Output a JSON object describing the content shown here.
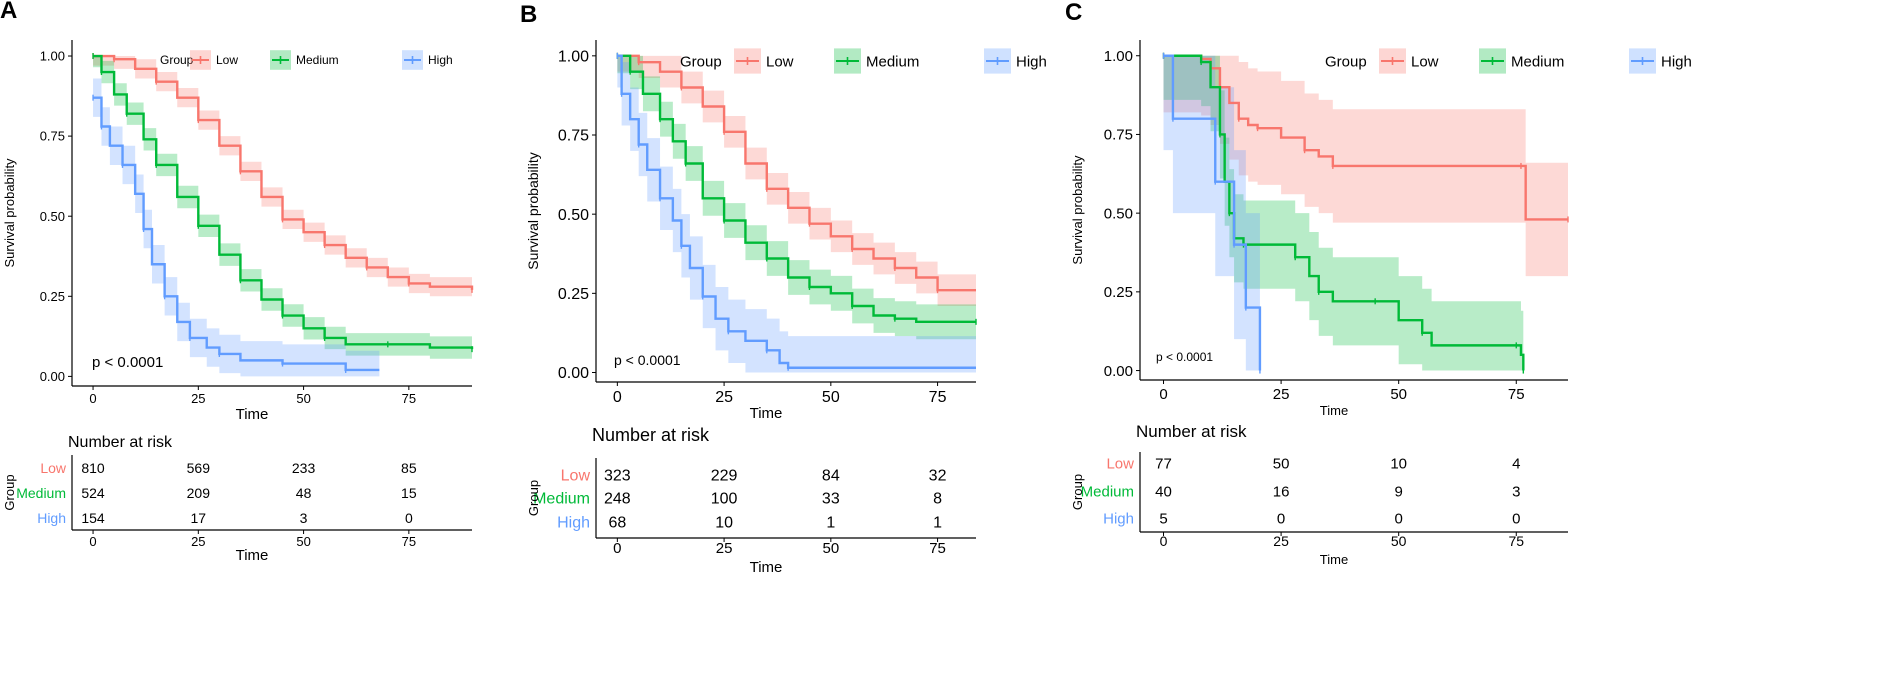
{
  "colors": {
    "low": "#F8766D",
    "medium": "#00BA38",
    "high": "#619CFF",
    "axis": "#000000"
  },
  "chart_data": [
    {
      "type": "line",
      "panel_label": "A",
      "title": "",
      "xlabel": "Time",
      "ylabel": "Survival probability",
      "xlim": [
        -5,
        90
      ],
      "ylim": [
        -0.03,
        1.05
      ],
      "xticks": [
        "0",
        "25",
        "50",
        "75"
      ],
      "yticks": [
        "0.00",
        "0.25",
        "0.50",
        "0.75",
        "1.00"
      ],
      "legend_title": "Group",
      "pvalue": "p < 0.0001",
      "risk_title": "Number at risk",
      "risk_ylabel": "Group",
      "risk_xlabel": "Time",
      "series": [
        {
          "name": "Low",
          "key": "low",
          "points": [
            [
              0,
              1.0
            ],
            [
              5,
              0.99
            ],
            [
              10,
              0.96
            ],
            [
              15,
              0.92
            ],
            [
              20,
              0.87
            ],
            [
              25,
              0.8
            ],
            [
              30,
              0.72
            ],
            [
              35,
              0.64
            ],
            [
              40,
              0.56
            ],
            [
              45,
              0.49
            ],
            [
              50,
              0.45
            ],
            [
              55,
              0.41
            ],
            [
              60,
              0.37
            ],
            [
              65,
              0.34
            ],
            [
              70,
              0.31
            ],
            [
              75,
              0.29
            ],
            [
              80,
              0.28
            ],
            [
              90,
              0.27
            ]
          ],
          "band": 0.03
        },
        {
          "name": "Medium",
          "key": "medium",
          "points": [
            [
              0,
              1.0
            ],
            [
              2,
              0.95
            ],
            [
              5,
              0.88
            ],
            [
              8,
              0.82
            ],
            [
              12,
              0.74
            ],
            [
              15,
              0.66
            ],
            [
              20,
              0.56
            ],
            [
              25,
              0.47
            ],
            [
              30,
              0.38
            ],
            [
              35,
              0.3
            ],
            [
              40,
              0.24
            ],
            [
              45,
              0.19
            ],
            [
              50,
              0.15
            ],
            [
              55,
              0.12
            ],
            [
              60,
              0.1
            ],
            [
              70,
              0.1
            ],
            [
              80,
              0.09
            ],
            [
              90,
              0.085
            ]
          ],
          "band": 0.035
        },
        {
          "name": "High",
          "key": "high",
          "points": [
            [
              0,
              0.87
            ],
            [
              2,
              0.78
            ],
            [
              4,
              0.72
            ],
            [
              7,
              0.66
            ],
            [
              10,
              0.57
            ],
            [
              12,
              0.46
            ],
            [
              14,
              0.35
            ],
            [
              17,
              0.25
            ],
            [
              20,
              0.17
            ],
            [
              23,
              0.12
            ],
            [
              27,
              0.09
            ],
            [
              30,
              0.07
            ],
            [
              35,
              0.05
            ],
            [
              45,
              0.04
            ],
            [
              55,
              0.04
            ],
            [
              60,
              0.02
            ],
            [
              68,
              0.02
            ]
          ],
          "band": 0.06
        }
      ],
      "risk_rows": [
        {
          "group": "Low",
          "key": "low",
          "values": [
            "810",
            "569",
            "233",
            "85"
          ]
        },
        {
          "group": "Medium",
          "key": "medium",
          "values": [
            "524",
            "209",
            "48",
            "15"
          ]
        },
        {
          "group": "High",
          "key": "high",
          "values": [
            "154",
            "17",
            "3",
            "0"
          ]
        }
      ]
    },
    {
      "type": "line",
      "panel_label": "B",
      "title": "",
      "xlabel": "Time",
      "ylabel": "Survival probability",
      "xlim": [
        -5,
        84
      ],
      "ylim": [
        -0.03,
        1.05
      ],
      "xticks": [
        "0",
        "25",
        "50",
        "75"
      ],
      "yticks": [
        "0.00",
        "0.25",
        "0.50",
        "0.75",
        "1.00"
      ],
      "legend_title": "Group",
      "pvalue": "p < 0.0001",
      "risk_title": "Number at risk",
      "risk_ylabel": "Group",
      "risk_xlabel": "Time",
      "series": [
        {
          "name": "Low",
          "key": "low",
          "points": [
            [
              0,
              1.0
            ],
            [
              5,
              0.98
            ],
            [
              10,
              0.95
            ],
            [
              15,
              0.9
            ],
            [
              20,
              0.84
            ],
            [
              25,
              0.76
            ],
            [
              30,
              0.66
            ],
            [
              35,
              0.58
            ],
            [
              40,
              0.52
            ],
            [
              45,
              0.47
            ],
            [
              50,
              0.43
            ],
            [
              55,
              0.39
            ],
            [
              60,
              0.36
            ],
            [
              65,
              0.33
            ],
            [
              70,
              0.3
            ],
            [
              75,
              0.26
            ],
            [
              84,
              0.26
            ]
          ],
          "band": 0.05
        },
        {
          "name": "Medium",
          "key": "medium",
          "points": [
            [
              0,
              1.0
            ],
            [
              3,
              0.95
            ],
            [
              6,
              0.88
            ],
            [
              10,
              0.8
            ],
            [
              13,
              0.73
            ],
            [
              16,
              0.66
            ],
            [
              20,
              0.55
            ],
            [
              25,
              0.48
            ],
            [
              30,
              0.41
            ],
            [
              35,
              0.36
            ],
            [
              40,
              0.3
            ],
            [
              45,
              0.27
            ],
            [
              50,
              0.25
            ],
            [
              55,
              0.21
            ],
            [
              60,
              0.18
            ],
            [
              65,
              0.17
            ],
            [
              70,
              0.16
            ],
            [
              84,
              0.16
            ]
          ],
          "band": 0.055
        },
        {
          "name": "High",
          "key": "high",
          "points": [
            [
              0,
              1.0
            ],
            [
              1,
              0.88
            ],
            [
              3,
              0.8
            ],
            [
              5,
              0.72
            ],
            [
              7,
              0.64
            ],
            [
              10,
              0.55
            ],
            [
              13,
              0.48
            ],
            [
              15,
              0.4
            ],
            [
              17,
              0.33
            ],
            [
              20,
              0.24
            ],
            [
              23,
              0.17
            ],
            [
              26,
              0.13
            ],
            [
              30,
              0.1
            ],
            [
              35,
              0.07
            ],
            [
              38,
              0.03
            ],
            [
              40,
              0.015
            ],
            [
              84,
              0.015
            ]
          ],
          "band": 0.1
        }
      ],
      "risk_rows": [
        {
          "group": "Low",
          "key": "low",
          "values": [
            "323",
            "229",
            "84",
            "32"
          ]
        },
        {
          "group": "Medium",
          "key": "medium",
          "values": [
            "248",
            "100",
            "33",
            "8"
          ]
        },
        {
          "group": "High",
          "key": "high",
          "values": [
            "68",
            "10",
            "1",
            "1"
          ]
        }
      ]
    },
    {
      "type": "line",
      "panel_label": "C",
      "title": "",
      "xlabel": "Time",
      "ylabel": "Survival probability",
      "xlim": [
        -5,
        86
      ],
      "ylim": [
        -0.03,
        1.05
      ],
      "xticks": [
        "0",
        "25",
        "50",
        "75"
      ],
      "yticks": [
        "0.00",
        "0.25",
        "0.50",
        "0.75",
        "1.00"
      ],
      "legend_title": "Group",
      "pvalue": "p < 0.0001",
      "risk_title": "Number at risk",
      "risk_ylabel": "Group",
      "risk_xlabel": "Time",
      "series": [
        {
          "name": "Low",
          "key": "low",
          "points": [
            [
              0,
              1.0
            ],
            [
              8,
              0.99
            ],
            [
              10,
              0.96
            ],
            [
              12,
              0.9
            ],
            [
              14,
              0.85
            ],
            [
              16,
              0.8
            ],
            [
              18,
              0.78
            ],
            [
              20,
              0.77
            ],
            [
              25,
              0.74
            ],
            [
              30,
              0.7
            ],
            [
              33,
              0.68
            ],
            [
              36,
              0.65
            ],
            [
              45,
              0.65
            ],
            [
              76,
              0.65
            ],
            [
              77,
              0.48
            ],
            [
              86,
              0.48
            ]
          ],
          "band": 0.18
        },
        {
          "name": "Medium",
          "key": "medium",
          "points": [
            [
              0,
              1.0
            ],
            [
              8,
              0.98
            ],
            [
              10,
              0.9
            ],
            [
              12,
              0.75
            ],
            [
              13,
              0.6
            ],
            [
              14,
              0.5
            ],
            [
              15,
              0.42
            ],
            [
              17,
              0.4
            ],
            [
              25,
              0.4
            ],
            [
              28,
              0.36
            ],
            [
              31,
              0.3
            ],
            [
              33,
              0.25
            ],
            [
              36,
              0.22
            ],
            [
              45,
              0.22
            ],
            [
              50,
              0.16
            ],
            [
              55,
              0.12
            ],
            [
              57,
              0.08
            ],
            [
              75,
              0.08
            ],
            [
              76,
              0.05
            ],
            [
              76.5,
              0.0
            ]
          ],
          "band": 0.14
        },
        {
          "name": "High",
          "key": "high",
          "points": [
            [
              0,
              1.0
            ],
            [
              2,
              0.8
            ],
            [
              10,
              0.8
            ],
            [
              11,
              0.6
            ],
            [
              14,
              0.6
            ],
            [
              15,
              0.4
            ],
            [
              17,
              0.4
            ],
            [
              17.5,
              0.2
            ],
            [
              20,
              0.2
            ],
            [
              20.5,
              0.0
            ]
          ],
          "band": 0.3
        }
      ],
      "risk_rows": [
        {
          "group": "Low",
          "key": "low",
          "values": [
            "77",
            "50",
            "10",
            "4"
          ]
        },
        {
          "group": "Medium",
          "key": "medium",
          "values": [
            "40",
            "16",
            "9",
            "3"
          ]
        },
        {
          "group": "High",
          "key": "high",
          "values": [
            "5",
            "0",
            "0",
            "0"
          ]
        }
      ]
    }
  ]
}
